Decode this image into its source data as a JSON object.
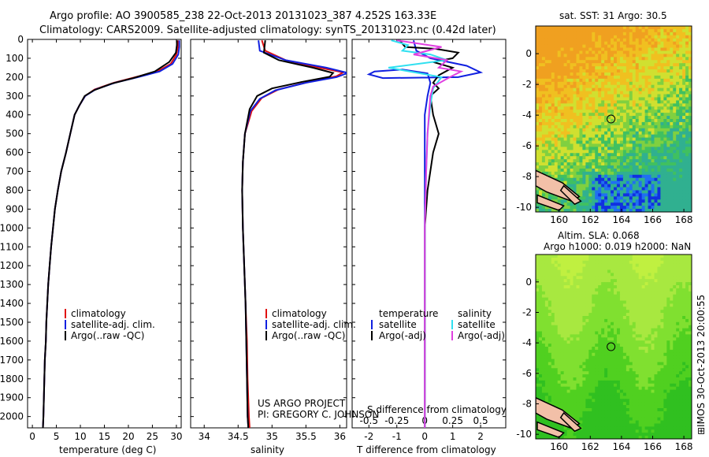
{
  "header": {
    "line1": "Argo profile: AO 3900585_238 22-Oct-2013 20131023_387 4.252S 163.33E",
    "line2": "Climatology: CARS2009. Satellite-adjusted climatology: synTS_20131023.nc (0.42d later)"
  },
  "colors": {
    "climatology": "#e01010",
    "satellite": "#1020e0",
    "argo": "#000000",
    "sal_satellite": "#30e0f0",
    "sal_argo": "#e040e0",
    "land": "#f2c0a8"
  },
  "chart_data": [
    {
      "type": "line",
      "panel": "temperature",
      "xlabel": "temperature (deg C)",
      "xlim": [
        -1,
        31
      ],
      "xticks": [
        0,
        5,
        10,
        15,
        20,
        25,
        30
      ],
      "ylim": [
        0,
        2060
      ],
      "yticks": [
        0,
        100,
        200,
        300,
        400,
        500,
        600,
        700,
        800,
        900,
        1000,
        1100,
        1200,
        1300,
        1400,
        1500,
        1600,
        1700,
        1800,
        1900,
        2000
      ],
      "legend": [
        "climatology",
        "satellite-adj. clim.",
        "Argo(..raw -QC)"
      ],
      "series": [
        {
          "name": "climatology",
          "color": "#e01010",
          "points": [
            [
              30.3,
              5
            ],
            [
              30.3,
              40
            ],
            [
              30,
              80
            ],
            [
              28.8,
              130
            ],
            [
              26,
              170
            ],
            [
              21.5,
              200
            ],
            [
              17,
              230
            ],
            [
              13,
              265
            ],
            [
              11,
              300
            ],
            [
              9.8,
              350
            ],
            [
              8.8,
              400
            ],
            [
              7.9,
              500
            ],
            [
              7,
              600
            ],
            [
              6,
              700
            ],
            [
              5.3,
              800
            ],
            [
              4.7,
              900
            ],
            [
              4.3,
              1000
            ],
            [
              3.9,
              1100
            ],
            [
              3.6,
              1200
            ],
            [
              3.3,
              1300
            ],
            [
              3.1,
              1400
            ],
            [
              2.9,
              1500
            ],
            [
              2.8,
              1600
            ],
            [
              2.6,
              1700
            ],
            [
              2.5,
              1800
            ],
            [
              2.4,
              1900
            ],
            [
              2.3,
              2000
            ],
            [
              2.2,
              2060
            ]
          ]
        },
        {
          "name": "satellite-adj. clim.",
          "color": "#1020e0",
          "points": [
            [
              30.6,
              5
            ],
            [
              30.6,
              40
            ],
            [
              30.4,
              80
            ],
            [
              29.2,
              130
            ],
            [
              26.5,
              170
            ],
            [
              22,
              200
            ],
            [
              17.2,
              230
            ],
            [
              13.2,
              265
            ],
            [
              11,
              300
            ],
            [
              9.8,
              350
            ],
            [
              8.8,
              400
            ],
            [
              7.9,
              500
            ],
            [
              7,
              600
            ],
            [
              6,
              700
            ],
            [
              5.3,
              800
            ],
            [
              4.7,
              900
            ],
            [
              4.3,
              1000
            ],
            [
              3.9,
              1100
            ],
            [
              3.6,
              1200
            ],
            [
              3.3,
              1300
            ],
            [
              3.1,
              1400
            ],
            [
              2.9,
              1500
            ],
            [
              2.8,
              1600
            ],
            [
              2.6,
              1700
            ],
            [
              2.5,
              1800
            ],
            [
              2.4,
              1900
            ],
            [
              2.3,
              2000
            ],
            [
              2.2,
              2060
            ]
          ]
        },
        {
          "name": "Argo(..raw -QC)",
          "color": "#000000",
          "points": [
            [
              30.1,
              5
            ],
            [
              30.1,
              30
            ],
            [
              29.9,
              70
            ],
            [
              28.5,
              120
            ],
            [
              25.5,
              170
            ],
            [
              21,
              205
            ],
            [
              16.5,
              235
            ],
            [
              12.8,
              270
            ],
            [
              10.9,
              300
            ],
            [
              9.8,
              350
            ],
            [
              8.8,
              400
            ],
            [
              7.9,
              500
            ],
            [
              7,
              600
            ],
            [
              6,
              700
            ],
            [
              5.3,
              800
            ],
            [
              4.7,
              900
            ],
            [
              4.3,
              1000
            ],
            [
              3.9,
              1100
            ],
            [
              3.6,
              1200
            ],
            [
              3.3,
              1300
            ],
            [
              3.1,
              1400
            ],
            [
              2.9,
              1500
            ],
            [
              2.8,
              1600
            ],
            [
              2.6,
              1700
            ],
            [
              2.5,
              1800
            ],
            [
              2.4,
              1900
            ],
            [
              2.3,
              2000
            ],
            [
              2.2,
              2060
            ]
          ]
        }
      ]
    },
    {
      "type": "line",
      "panel": "salinity",
      "xlabel": "salinity",
      "xlim": [
        33.8,
        36.1
      ],
      "xticks": [
        34,
        34.5,
        35,
        35.5,
        36
      ],
      "ylim": [
        0,
        2060
      ],
      "legend": [
        "climatology",
        "satellite-adj. clim.",
        "Argo(..raw -QC)"
      ],
      "series": [
        {
          "name": "climatology",
          "color": "#e01010",
          "points": [
            [
              34.85,
              5
            ],
            [
              34.9,
              60
            ],
            [
              35.2,
              110
            ],
            [
              35.7,
              150
            ],
            [
              36.05,
              175
            ],
            [
              35.95,
              195
            ],
            [
              35.55,
              225
            ],
            [
              35.1,
              265
            ],
            [
              34.85,
              310
            ],
            [
              34.7,
              380
            ],
            [
              34.6,
              500
            ],
            [
              34.57,
              650
            ],
            [
              34.56,
              800
            ],
            [
              34.57,
              1000
            ],
            [
              34.59,
              1200
            ],
            [
              34.61,
              1400
            ],
            [
              34.63,
              1600
            ],
            [
              34.64,
              1800
            ],
            [
              34.66,
              2000
            ],
            [
              34.67,
              2060
            ]
          ]
        },
        {
          "name": "satellite-adj. clim.",
          "color": "#1020e0",
          "points": [
            [
              34.8,
              5
            ],
            [
              34.82,
              60
            ],
            [
              35.2,
              110
            ],
            [
              35.8,
              150
            ],
            [
              36.12,
              178
            ],
            [
              35.95,
              200
            ],
            [
              35.5,
              230
            ],
            [
              35.05,
              270
            ],
            [
              34.82,
              315
            ],
            [
              34.68,
              380
            ],
            [
              34.6,
              500
            ],
            [
              34.57,
              650
            ],
            [
              34.56,
              800
            ],
            [
              34.57,
              1000
            ],
            [
              34.59,
              1200
            ],
            [
              34.61,
              1400
            ],
            [
              34.62,
              1600
            ],
            [
              34.63,
              1800
            ],
            [
              34.64,
              2000
            ],
            [
              34.65,
              2060
            ]
          ]
        },
        {
          "name": "Argo(..raw -QC)",
          "color": "#000000",
          "points": [
            [
              34.9,
              5
            ],
            [
              34.88,
              70
            ],
            [
              35.1,
              110
            ],
            [
              35.6,
              150
            ],
            [
              35.9,
              178
            ],
            [
              35.85,
              198
            ],
            [
              35.45,
              225
            ],
            [
              35.0,
              260
            ],
            [
              34.78,
              300
            ],
            [
              34.67,
              370
            ],
            [
              34.6,
              500
            ],
            [
              34.57,
              650
            ],
            [
              34.56,
              800
            ],
            [
              34.57,
              1000
            ],
            [
              34.59,
              1200
            ],
            [
              34.61,
              1400
            ],
            [
              34.62,
              1600
            ],
            [
              34.63,
              1800
            ],
            [
              34.64,
              2000
            ],
            [
              34.65,
              2060
            ]
          ]
        }
      ]
    },
    {
      "type": "line",
      "panel": "difference",
      "xlabel": "T difference from climatology",
      "xlabel_top": "S difference from climatology",
      "xlim": [
        -2.6,
        2.9
      ],
      "xticks": [
        -2,
        -1,
        0,
        1,
        2
      ],
      "xticks_s": [
        "-0.5",
        "-0.25",
        "0",
        "0.25",
        "0.5"
      ],
      "xticks_s_pos": [
        -2,
        -1,
        0,
        1,
        2
      ],
      "ylim": [
        0,
        2060
      ],
      "legend_titles": [
        "temperature",
        "salinity"
      ],
      "legend": [
        "satellite",
        "Argo(-adj)",
        "satellite",
        "Argo(-adj)"
      ],
      "series": [
        {
          "name": "satellite",
          "color": "#1020e0",
          "points": [
            [
              -0.4,
              5
            ],
            [
              -0.3,
              60
            ],
            [
              0.2,
              100
            ],
            [
              1.5,
              140
            ],
            [
              2.0,
              175
            ],
            [
              1.2,
              200
            ],
            [
              -1.5,
              205
            ],
            [
              -2.0,
              185
            ],
            [
              -1.8,
              170
            ],
            [
              -0.8,
              160
            ],
            [
              0.1,
              180
            ],
            [
              0.2,
              230
            ],
            [
              0.1,
              300
            ],
            [
              0,
              400
            ],
            [
              0,
              600
            ],
            [
              0,
              1000
            ],
            [
              0,
              1500
            ],
            [
              0,
              2060
            ]
          ]
        },
        {
          "name": "Argo(-adj)",
          "color": "#000000",
          "points": [
            [
              -0.9,
              5
            ],
            [
              -0.7,
              40
            ],
            [
              0.4,
              50
            ],
            [
              1.2,
              70
            ],
            [
              1.0,
              100
            ],
            [
              0.3,
              120
            ],
            [
              1.0,
              150
            ],
            [
              0.5,
              190
            ],
            [
              0.3,
              230
            ],
            [
              0.5,
              260
            ],
            [
              0.2,
              300
            ],
            [
              0.3,
              400
            ],
            [
              0.5,
              500
            ],
            [
              0.3,
              600
            ],
            [
              0.1,
              800
            ],
            [
              0,
              1000
            ],
            [
              0,
              1500
            ],
            [
              0,
              2060
            ]
          ]
        },
        {
          "name": "satellite",
          "color": "#30e0f0",
          "points": [
            [
              -1.2,
              5
            ],
            [
              -0.6,
              30
            ],
            [
              -0.8,
              60
            ],
            [
              0.2,
              80
            ],
            [
              0.8,
              110
            ],
            [
              -1.3,
              150
            ],
            [
              0.6,
              200
            ],
            [
              0.3,
              260
            ],
            [
              0.2,
              350
            ],
            [
              0.1,
              500
            ],
            [
              0.05,
              700
            ],
            [
              0,
              1000
            ],
            [
              0,
              1500
            ],
            [
              0,
              2060
            ]
          ]
        },
        {
          "name": "Argo(-adj)",
          "color": "#e040e0",
          "points": [
            [
              -1.0,
              5
            ],
            [
              0.6,
              40
            ],
            [
              -0.4,
              80
            ],
            [
              0.8,
              110
            ],
            [
              0.5,
              150
            ],
            [
              1.3,
              170
            ],
            [
              0.9,
              200
            ],
            [
              0.3,
              250
            ],
            [
              0.2,
              300
            ],
            [
              0.1,
              500
            ],
            [
              0.05,
              700
            ],
            [
              0,
              1000
            ],
            [
              0,
              1500
            ],
            [
              0,
              2060
            ]
          ]
        }
      ]
    },
    {
      "type": "heatmap",
      "panel": "sst-map",
      "title": "sat. SST: 31  Argo: 30.5",
      "xlim": [
        158.5,
        168.5
      ],
      "ylim": [
        -10.3,
        1.8
      ],
      "xticks": [
        160,
        162,
        164,
        166,
        168
      ],
      "yticks": [
        0,
        -2,
        -4,
        -6,
        -8,
        -10
      ],
      "marker": {
        "lon": 163.33,
        "lat": -4.252
      }
    },
    {
      "type": "heatmap",
      "panel": "sla-map",
      "title": "Altim. SLA: 0.068",
      "subtitle": "Argo h1000: 0.019 h2000: NaN",
      "xlim": [
        158.5,
        168.5
      ],
      "ylim": [
        -10.3,
        1.8
      ],
      "xticks": [
        160,
        162,
        164,
        166,
        168
      ],
      "yticks": [
        0,
        -2,
        -4,
        -6,
        -8,
        -10
      ],
      "marker": {
        "lon": 163.33,
        "lat": -4.252
      }
    }
  ],
  "credits": {
    "project": "US ARGO PROJECT",
    "pi": "PI: GREGORY C. JOHNSON"
  },
  "stamp": "⊞IMOS 30-Oct-2013 20:00:55"
}
